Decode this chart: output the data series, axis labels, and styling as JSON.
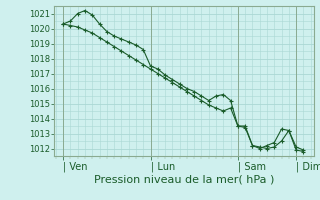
{
  "title": "",
  "xlabel": "Pression niveau de la mer( hPa )",
  "bg_color": "#cff0ee",
  "grid_color": "#aad8d4",
  "line_color": "#1a5c2a",
  "spine_color": "#8aaa90",
  "ylim": [
    1011.5,
    1021.5
  ],
  "yticks": [
    1012,
    1013,
    1014,
    1015,
    1016,
    1017,
    1018,
    1019,
    1020,
    1021
  ],
  "day_labels": [
    "| Ven",
    "| Lun",
    "| Sam",
    "| Dim"
  ],
  "day_positions": [
    0.0,
    3.0,
    6.0,
    8.0
  ],
  "line1_x": [
    0.0,
    0.25,
    0.5,
    0.75,
    1.0,
    1.25,
    1.5,
    1.75,
    2.0,
    2.25,
    2.5,
    2.75,
    3.0,
    3.25,
    3.5,
    3.75,
    4.0,
    4.25,
    4.5,
    4.75,
    5.0,
    5.25,
    5.5,
    5.75,
    6.0,
    6.25,
    6.5,
    6.75,
    7.0,
    7.25,
    7.5,
    7.75,
    8.0,
    8.25
  ],
  "line1_y": [
    1020.3,
    1020.5,
    1021.0,
    1021.2,
    1020.9,
    1020.3,
    1019.8,
    1019.5,
    1019.3,
    1019.1,
    1018.9,
    1018.6,
    1017.5,
    1017.3,
    1016.9,
    1016.6,
    1016.3,
    1016.0,
    1015.8,
    1015.5,
    1015.2,
    1015.5,
    1015.6,
    1015.2,
    1013.5,
    1013.5,
    1012.2,
    1012.0,
    1012.2,
    1012.4,
    1013.3,
    1013.2,
    1012.1,
    1011.9
  ],
  "line2_x": [
    0.0,
    0.25,
    0.5,
    0.75,
    1.0,
    1.25,
    1.5,
    1.75,
    2.0,
    2.25,
    2.5,
    2.75,
    3.0,
    3.25,
    3.5,
    3.75,
    4.0,
    4.25,
    4.5,
    4.75,
    5.0,
    5.25,
    5.5,
    5.75,
    6.0,
    6.25,
    6.5,
    6.75,
    7.0,
    7.25,
    7.5,
    7.75,
    8.0,
    8.25
  ],
  "line2_y": [
    1020.3,
    1020.2,
    1020.1,
    1019.9,
    1019.7,
    1019.4,
    1019.1,
    1018.8,
    1018.5,
    1018.2,
    1017.9,
    1017.6,
    1017.3,
    1017.0,
    1016.7,
    1016.4,
    1016.1,
    1015.8,
    1015.5,
    1015.2,
    1014.9,
    1014.7,
    1014.5,
    1014.7,
    1013.5,
    1013.4,
    1012.2,
    1012.1,
    1012.0,
    1012.1,
    1012.5,
    1013.2,
    1011.9,
    1011.8
  ],
  "xlim": [
    -0.3,
    8.6
  ],
  "xlabel_fontsize": 8,
  "ytick_fontsize": 6,
  "xtick_fontsize": 7
}
